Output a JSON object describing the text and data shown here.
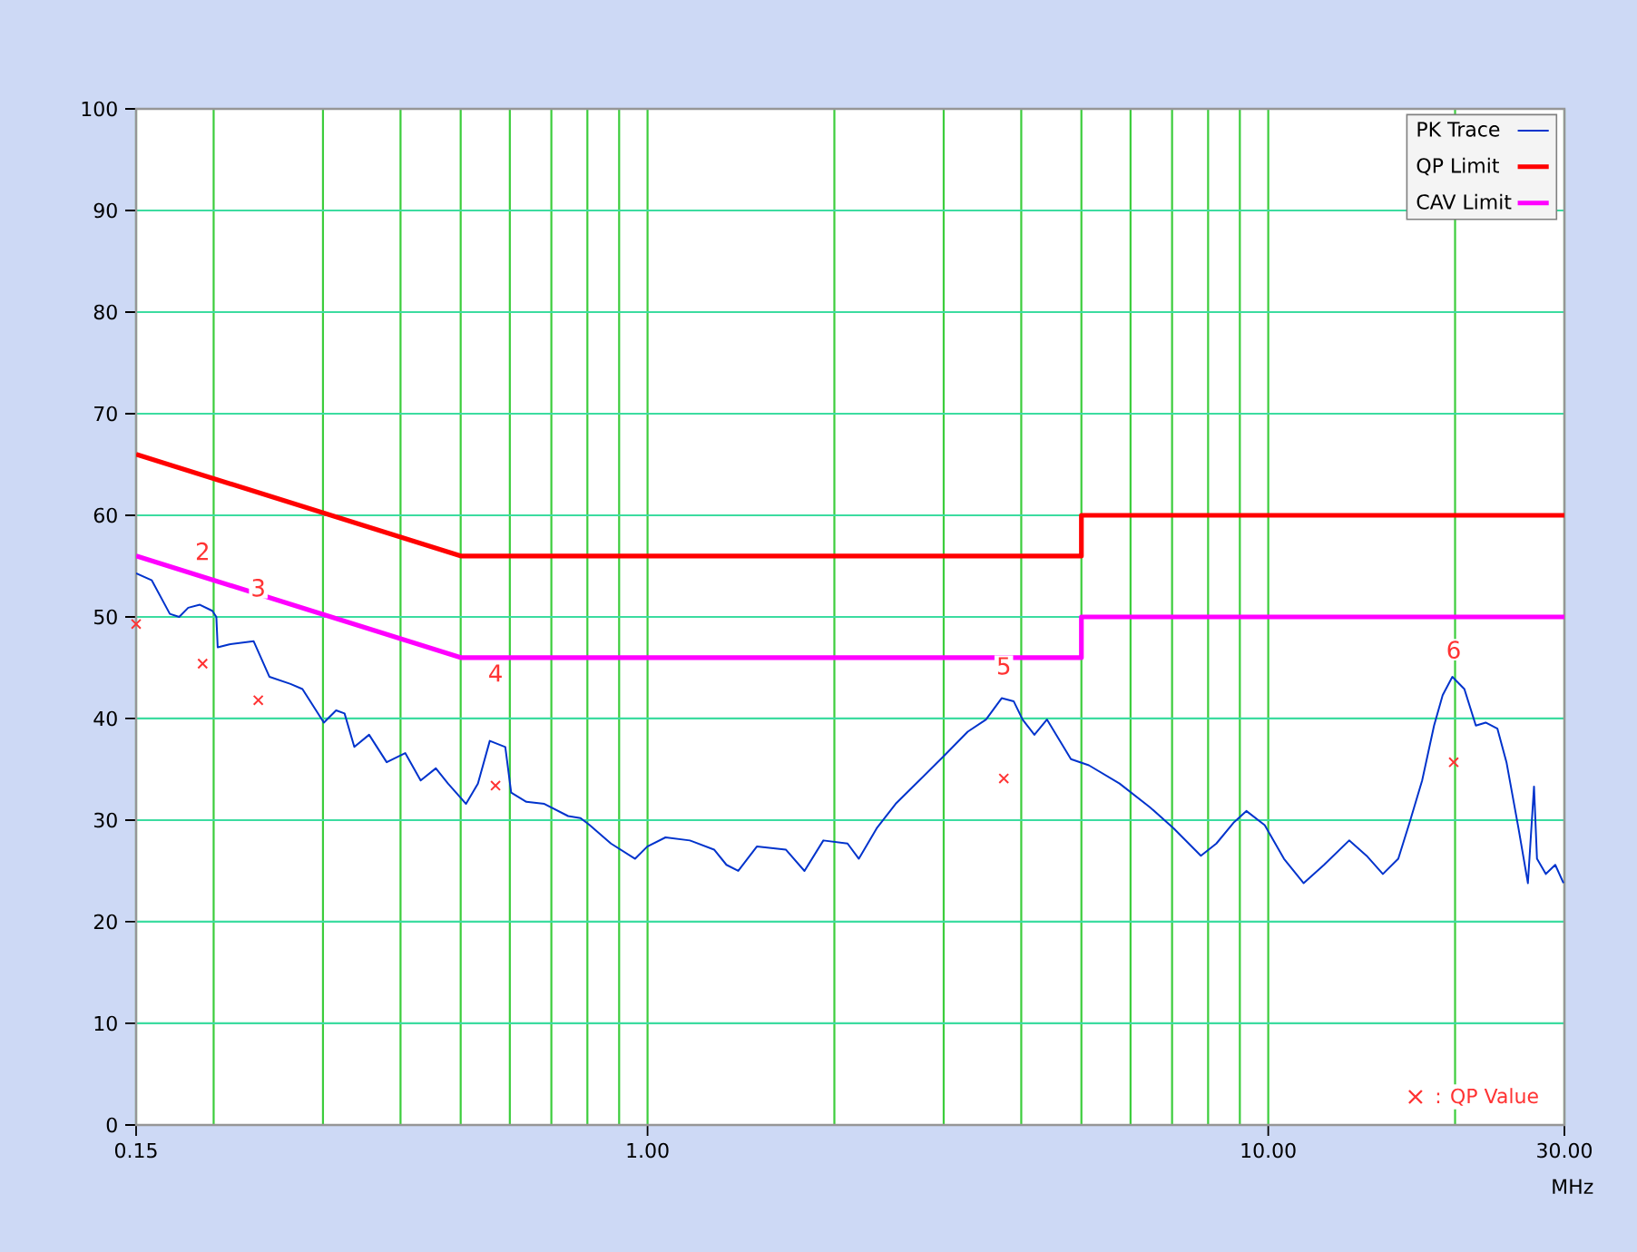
{
  "chart_data": {
    "type": "line",
    "xlabel": "MHz",
    "log": "x",
    "grid": true,
    "legend": "top right",
    "xlim": [
      0.15,
      30
    ],
    "ylim": [
      0,
      100
    ],
    "xticks": [
      0.15,
      {
        "value": 1,
        "label": "1.00"
      },
      {
        "value": 10,
        "label": "10.00"
      },
      {
        "value": 30,
        "label": "30.00"
      }
    ],
    "yticks": [
      0,
      10,
      20,
      30,
      40,
      50,
      60,
      70,
      80,
      90,
      100
    ],
    "series": [
      {
        "name": "PK Trace",
        "color": "#0033cc",
        "marker": "none",
        "x": [
          0.15,
          0.159,
          0.17,
          0.176,
          0.182,
          0.19,
          0.199,
          0.202,
          0.203,
          0.212,
          0.232,
          0.246,
          0.266,
          0.278,
          0.301,
          0.315,
          0.325,
          0.337,
          0.356,
          0.38,
          0.407,
          0.431,
          0.456,
          0.477,
          0.51,
          0.533,
          0.557,
          0.59,
          0.603,
          0.638,
          0.682,
          0.745,
          0.78,
          0.807,
          0.873,
          0.955,
          0.999,
          1.069,
          1.17,
          1.28,
          1.34,
          1.4,
          1.5,
          1.67,
          1.79,
          1.92,
          2.1,
          2.19,
          2.34,
          2.51,
          2.74,
          3.0,
          3.28,
          3.51,
          3.72,
          3.89,
          4.02,
          4.2,
          4.4,
          4.81,
          5.14,
          5.76,
          6.44,
          7.04,
          7.79,
          8.25,
          8.81,
          9.22,
          9.87,
          10.6,
          11.4,
          12.3,
          13.5,
          14.4,
          15.3,
          16.2,
          16.9,
          17.7,
          18.5,
          19.1,
          19.8,
          20.7,
          21.6,
          22.4,
          23.4,
          24.2,
          25.3,
          26.2,
          26.8,
          27.1,
          28.0,
          29.0,
          29.9
        ],
        "values": [
          54.3,
          53.6,
          50.3,
          50.0,
          50.9,
          51.2,
          50.6,
          50.0,
          47.0,
          47.3,
          47.6,
          44.1,
          43.4,
          42.9,
          39.6,
          40.8,
          40.5,
          37.2,
          38.4,
          35.7,
          36.6,
          33.9,
          35.1,
          33.6,
          31.6,
          33.6,
          37.8,
          37.2,
          32.7,
          31.8,
          31.6,
          30.4,
          30.2,
          29.5,
          27.7,
          26.2,
          27.4,
          28.3,
          28.0,
          27.1,
          25.6,
          25.0,
          27.4,
          27.1,
          25.0,
          28.0,
          27.7,
          26.2,
          29.2,
          31.6,
          33.9,
          36.3,
          38.7,
          39.9,
          42.0,
          41.7,
          39.9,
          38.4,
          39.9,
          36.0,
          35.4,
          33.6,
          31.3,
          29.2,
          26.5,
          27.7,
          29.8,
          30.9,
          29.5,
          26.2,
          23.8,
          25.6,
          28.0,
          26.5,
          24.7,
          26.2,
          29.8,
          33.9,
          39.3,
          42.3,
          44.1,
          42.9,
          39.3,
          39.6,
          39.0,
          35.7,
          29.2,
          23.8,
          33.3,
          26.2,
          24.7,
          25.6,
          23.8
        ]
      },
      {
        "name": "QP Limit",
        "color": "#ff0000",
        "marker": "none",
        "x": [
          0.15,
          0.5,
          5,
          5,
          30
        ],
        "values": [
          66,
          56,
          56,
          60,
          60
        ]
      },
      {
        "name": "CAV Limit",
        "color": "#ff00ff",
        "marker": "none",
        "x": [
          0.15,
          0.5,
          5,
          5,
          30
        ],
        "values": [
          56,
          46,
          46,
          50,
          50
        ]
      },
      {
        "name": ": QP Value",
        "type": "scatter",
        "color": "#ff3333",
        "marker": "cross",
        "x": [
          0.15,
          0.192,
          0.236,
          0.569,
          3.75,
          19.9
        ],
        "values": [
          49.3,
          45.4,
          41.8,
          33.4,
          34.1,
          35.7
        ]
      }
    ],
    "annotations": [
      "2",
      "3",
      "4",
      "5",
      "6"
    ]
  }
}
